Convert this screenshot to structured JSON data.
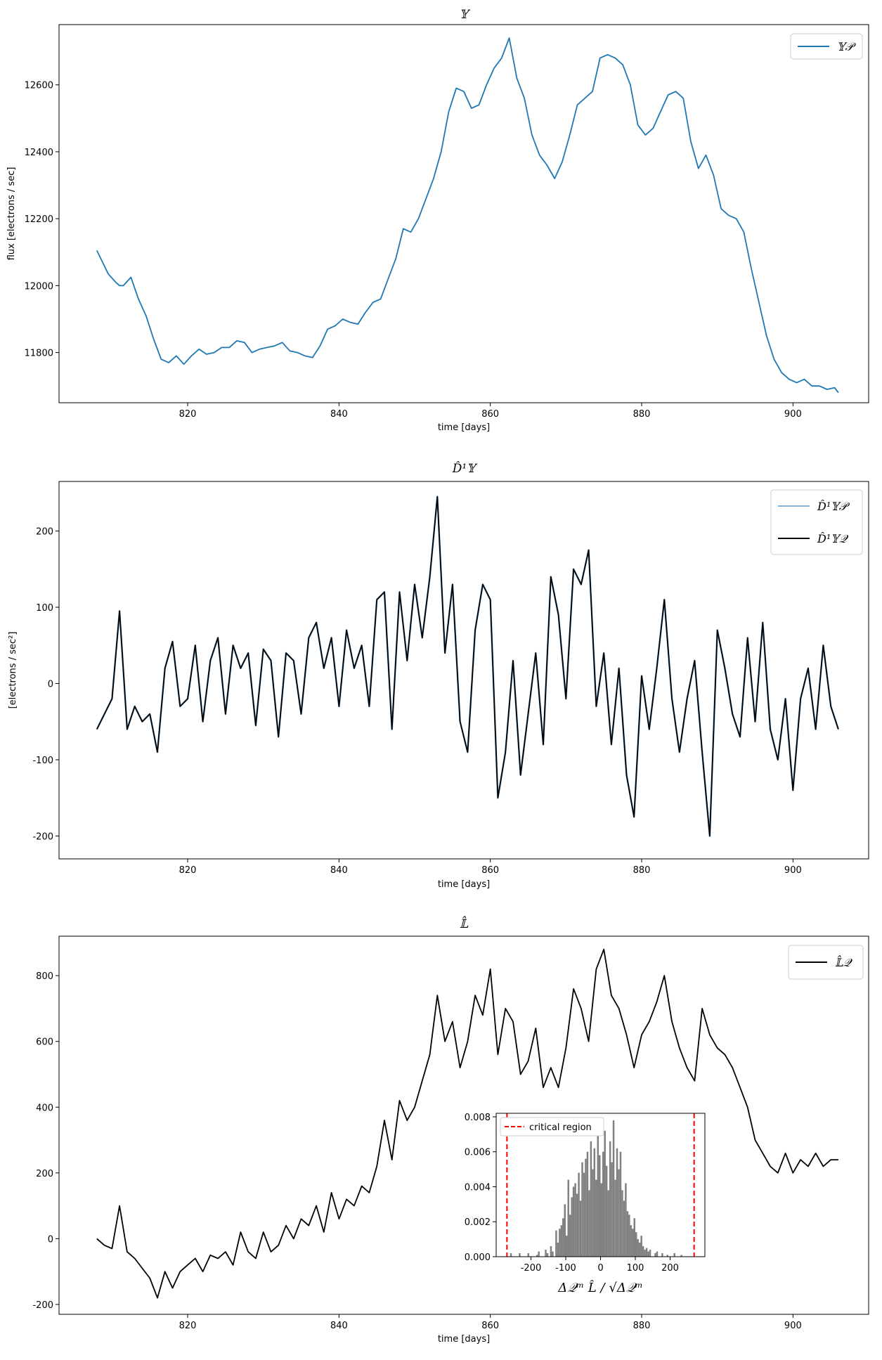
{
  "chart_data": [
    {
      "type": "line",
      "title": "𝕐",
      "xlabel": "time [days]",
      "ylabel": "flux [electrons / sec]",
      "xlim": [
        803,
        910
      ],
      "ylim": [
        11650,
        12780
      ],
      "xticks": [
        820,
        840,
        860,
        880,
        900
      ],
      "yticks": [
        11800,
        12000,
        12200,
        12400,
        12600
      ],
      "legend_position": "top-right",
      "grid": false,
      "series": [
        {
          "name": "𝕐𝒫",
          "color": "#1f77b4",
          "x": [
            808,
            809.5,
            810.5,
            811,
            811.5,
            812.5,
            813.5,
            814.5,
            815.5,
            816.5,
            817.5,
            818.5,
            819.5,
            820.5,
            821.5,
            822.5,
            823.5,
            824.5,
            825.5,
            826.5,
            827.5,
            828.5,
            829.5,
            830.5,
            831.5,
            832.5,
            833.5,
            834.5,
            835.5,
            836.5,
            837.5,
            838.5,
            839.5,
            840.5,
            841.5,
            842.5,
            843.5,
            844.5,
            845.5,
            846.5,
            847.5,
            848.5,
            849.5,
            850.5,
            851.5,
            852.5,
            853.5,
            854.5,
            855.5,
            856.5,
            857.5,
            858.5,
            859.5,
            860.5,
            861.5,
            862.5,
            863.5,
            864.5,
            865.5,
            866.5,
            867.5,
            868.5,
            869.5,
            870.5,
            871.5,
            872.5,
            873.5,
            874.5,
            875.5,
            876.5,
            877.5,
            878.5,
            879.5,
            880.5,
            881.5,
            882.5,
            883.5,
            884.5,
            885.5,
            886.5,
            887.5,
            888.5,
            889.5,
            890.5,
            891.5,
            892.5,
            893.5,
            894.5,
            895.5,
            896.5,
            897.5,
            898.5,
            899.5,
            900.5,
            901.5,
            902.5,
            903.5,
            904.5,
            905.5,
            906
          ],
          "y": [
            12105,
            12035,
            12010,
            12000,
            12000,
            12025,
            11960,
            11910,
            11840,
            11780,
            11770,
            11790,
            11765,
            11790,
            11810,
            11795,
            11800,
            11815,
            11815,
            11835,
            11830,
            11800,
            11810,
            11815,
            11820,
            11830,
            11805,
            11800,
            11790,
            11785,
            11820,
            11870,
            11880,
            11900,
            11890,
            11885,
            11920,
            11950,
            11960,
            12020,
            12080,
            12170,
            12160,
            12200,
            12260,
            12320,
            12400,
            12520,
            12590,
            12580,
            12530,
            12540,
            12600,
            12650,
            12680,
            12740,
            12620,
            12560,
            12450,
            12390,
            12360,
            12320,
            12370,
            12450,
            12540,
            12560,
            12580,
            12680,
            12690,
            12680,
            12660,
            12600,
            12480,
            12450,
            12470,
            12520,
            12570,
            12580,
            12560,
            12430,
            12350,
            12390,
            12330,
            12230,
            12210,
            12200,
            12160,
            12050,
            11950,
            11850,
            11780,
            11740,
            11720,
            11710,
            11720,
            11700,
            11700,
            11690,
            11695,
            11680
          ]
        }
      ]
    },
    {
      "type": "line",
      "title": "D̂¹𝕐",
      "xlabel": "time [days]",
      "ylabel": "[electrons / sec²]",
      "xlim": [
        803,
        910
      ],
      "ylim": [
        -230,
        265
      ],
      "xticks": [
        820,
        840,
        860,
        880,
        900
      ],
      "yticks": [
        -200,
        -100,
        0,
        100,
        200
      ],
      "legend_position": "top-right",
      "grid": false,
      "series": [
        {
          "name": "D̂¹𝕐𝒫",
          "color": "#7fb1d9",
          "x": [
            808,
            809,
            810,
            811,
            812,
            813,
            814,
            815,
            816,
            817,
            818,
            819,
            820,
            821,
            822,
            823,
            824,
            825,
            826,
            827,
            828,
            829,
            830,
            831,
            832,
            833,
            834,
            835,
            836,
            837,
            838,
            839,
            840,
            841,
            842,
            843,
            844,
            845,
            846,
            847,
            848,
            849,
            850,
            851,
            852,
            853,
            854,
            855,
            856,
            857,
            858,
            859,
            860,
            861,
            862,
            863,
            864,
            865,
            866,
            867,
            868,
            869,
            870,
            871,
            872,
            873,
            874,
            875,
            876,
            877,
            878,
            879,
            880,
            881,
            882,
            883,
            884,
            885,
            886,
            887,
            888,
            889,
            890,
            891,
            892,
            893,
            894,
            895,
            896,
            897,
            898,
            899,
            900,
            901,
            902,
            903,
            904,
            905,
            906
          ],
          "y": [
            -60,
            -40,
            -20,
            95,
            -60,
            -30,
            -50,
            -40,
            -90,
            20,
            55,
            -30,
            -20,
            50,
            -50,
            30,
            60,
            -40,
            50,
            20,
            40,
            -55,
            45,
            30,
            -70,
            40,
            30,
            -40,
            60,
            80,
            20,
            60,
            -30,
            70,
            20,
            50,
            -30,
            110,
            120,
            -60,
            120,
            30,
            130,
            60,
            140,
            245,
            40,
            130,
            -50,
            -90,
            70,
            130,
            110,
            -150,
            -90,
            30,
            -120,
            -40,
            40,
            -80,
            140,
            90,
            -20,
            150,
            130,
            175,
            -30,
            40,
            -80,
            20,
            -120,
            -175,
            10,
            -60,
            20,
            110,
            -20,
            -90,
            -20,
            30,
            -90,
            -200,
            70,
            20,
            -40,
            -70,
            60,
            -50,
            80,
            -60,
            -100,
            -20,
            -140,
            -20,
            20,
            -60,
            50,
            -30,
            -60
          ]
        },
        {
          "name": "D̂¹𝕐𝒬",
          "color": "#000000",
          "x": [
            808,
            809,
            810,
            811,
            812,
            813,
            814,
            815,
            816,
            817,
            818,
            819,
            820,
            821,
            822,
            823,
            824,
            825,
            826,
            827,
            828,
            829,
            830,
            831,
            832,
            833,
            834,
            835,
            836,
            837,
            838,
            839,
            840,
            841,
            842,
            843,
            844,
            845,
            846,
            847,
            848,
            849,
            850,
            851,
            852,
            853,
            854,
            855,
            856,
            857,
            858,
            859,
            860,
            861,
            862,
            863,
            864,
            865,
            866,
            867,
            868,
            869,
            870,
            871,
            872,
            873,
            874,
            875,
            876,
            877,
            878,
            879,
            880,
            881,
            882,
            883,
            884,
            885,
            886,
            887,
            888,
            889,
            890,
            891,
            892,
            893,
            894,
            895,
            896,
            897,
            898,
            899,
            900,
            901,
            902,
            903,
            904,
            905,
            906
          ],
          "y": [
            -60,
            -40,
            -20,
            95,
            -60,
            -30,
            -50,
            -40,
            -90,
            20,
            55,
            -30,
            -20,
            50,
            -50,
            30,
            60,
            -40,
            50,
            20,
            40,
            -55,
            45,
            30,
            -70,
            40,
            30,
            -40,
            60,
            80,
            20,
            60,
            -30,
            70,
            20,
            50,
            -30,
            110,
            120,
            -60,
            120,
            30,
            130,
            60,
            140,
            245,
            40,
            130,
            -50,
            -90,
            70,
            130,
            110,
            -150,
            -90,
            30,
            -120,
            -40,
            40,
            -80,
            140,
            90,
            -20,
            150,
            130,
            175,
            -30,
            40,
            -80,
            20,
            -120,
            -175,
            10,
            -60,
            20,
            110,
            -20,
            -90,
            -20,
            30,
            -90,
            -200,
            70,
            20,
            -40,
            -70,
            60,
            -50,
            80,
            -60,
            -100,
            -20,
            -140,
            -20,
            20,
            -60,
            50,
            -30,
            -60
          ]
        }
      ]
    },
    {
      "type": "line",
      "title": "𝕃̂",
      "xlabel": "time [days]",
      "ylabel": "",
      "xlim": [
        803,
        910
      ],
      "ylim": [
        -230,
        920
      ],
      "xticks": [
        820,
        840,
        860,
        880,
        900
      ],
      "yticks": [
        -200,
        0,
        200,
        400,
        600,
        800
      ],
      "legend_position": "top-right",
      "grid": false,
      "series": [
        {
          "name": "𝕃̂𝒬",
          "color": "#000000",
          "x": [
            808,
            809,
            810,
            811,
            812,
            813,
            814,
            815,
            816,
            817,
            818,
            819,
            820,
            821,
            822,
            823,
            824,
            825,
            826,
            827,
            828,
            829,
            830,
            831,
            832,
            833,
            834,
            835,
            836,
            837,
            838,
            839,
            840,
            841,
            842,
            843,
            844,
            845,
            846,
            847,
            848,
            849,
            850,
            851,
            852,
            853,
            854,
            855,
            856,
            857,
            858,
            859,
            860,
            861,
            862,
            863,
            864,
            865,
            866,
            867,
            868,
            869,
            870,
            871,
            872,
            873,
            874,
            875,
            876,
            877,
            878,
            879,
            880,
            881,
            882,
            883,
            884,
            885,
            886,
            887,
            888,
            889,
            890,
            891,
            892,
            893,
            894,
            895,
            896,
            897,
            898,
            899,
            900,
            901,
            902,
            903,
            904,
            905,
            906
          ],
          "y": [
            0,
            -20,
            -30,
            100,
            -40,
            -60,
            -90,
            -120,
            -180,
            -100,
            -150,
            -100,
            -80,
            -60,
            -100,
            -50,
            -60,
            -40,
            -80,
            20,
            -40,
            -60,
            20,
            -40,
            -20,
            40,
            0,
            60,
            40,
            100,
            20,
            140,
            60,
            120,
            100,
            160,
            140,
            220,
            360,
            240,
            420,
            360,
            400,
            480,
            560,
            740,
            600,
            660,
            520,
            600,
            740,
            680,
            820,
            560,
            700,
            660,
            500,
            540,
            640,
            460,
            520,
            460,
            580,
            760,
            700,
            600,
            820,
            880,
            740,
            700,
            620,
            520,
            620,
            660,
            720,
            800,
            660,
            580,
            520,
            480,
            700,
            620,
            580,
            560,
            520,
            460,
            400,
            300,
            260,
            220,
            200,
            260,
            200,
            240,
            220,
            260,
            220,
            240,
            240
          ]
        }
      ]
    },
    {
      "type": "bar",
      "title": "",
      "xlabel": "Δ𝒬ᵐ L̂ / √Δ𝒬ᵐ",
      "ylabel": "",
      "xlim": [
        -300,
        300
      ],
      "ylim": [
        0,
        0.0082
      ],
      "xticks": [
        -200,
        -100,
        0,
        100,
        200
      ],
      "yticks": [
        0.0,
        0.002,
        0.004,
        0.006,
        0.008
      ],
      "ytick_labels": [
        "0.000",
        "0.002",
        "0.004",
        "0.006",
        "0.008"
      ],
      "legend_position": "top-left",
      "legend_label": "critical region",
      "critical_lines": [
        -269,
        269
      ],
      "critical_color": "#ff0000",
      "bar_color": "#808080",
      "bin_width": 5,
      "bin_centers": [
        -257.5,
        -232.5,
        -207.5,
        -182.5,
        -177.5,
        -157.5,
        -152.5,
        -142.5,
        -137.5,
        -127.5,
        -122.5,
        -117.5,
        -112.5,
        -107.5,
        -102.5,
        -97.5,
        -92.5,
        -87.5,
        -82.5,
        -77.5,
        -72.5,
        -67.5,
        -62.5,
        -57.5,
        -52.5,
        -47.5,
        -42.5,
        -37.5,
        -32.5,
        -27.5,
        -22.5,
        -17.5,
        -12.5,
        -7.5,
        -2.5,
        2.5,
        7.5,
        12.5,
        17.5,
        22.5,
        27.5,
        32.5,
        37.5,
        42.5,
        47.5,
        52.5,
        57.5,
        62.5,
        67.5,
        72.5,
        77.5,
        82.5,
        87.5,
        92.5,
        97.5,
        102.5,
        107.5,
        112.5,
        117.5,
        122.5,
        127.5,
        132.5,
        137.5,
        142.5,
        157.5,
        162.5,
        177.5,
        192.5,
        212.5,
        232.5
      ],
      "densities": [
        0.0002,
        0.0002,
        0.0002,
        0.0001,
        0.0003,
        0.0004,
        0.0002,
        0.0006,
        0.0003,
        0.0015,
        0.0008,
        0.0016,
        0.0018,
        0.0022,
        0.003,
        0.0012,
        0.0044,
        0.0024,
        0.0034,
        0.004,
        0.0042,
        0.0036,
        0.0048,
        0.0032,
        0.0054,
        0.0048,
        0.0056,
        0.006,
        0.0038,
        0.0066,
        0.005,
        0.0062,
        0.0044,
        0.0076,
        0.0058,
        0.0042,
        0.006,
        0.0072,
        0.0052,
        0.0038,
        0.0066,
        0.0054,
        0.0078,
        0.0044,
        0.0062,
        0.005,
        0.006,
        0.0038,
        0.0032,
        0.0042,
        0.0026,
        0.0024,
        0.0018,
        0.0016,
        0.0022,
        0.0014,
        0.001,
        0.0008,
        0.0012,
        0.0006,
        0.0004,
        0.0005,
        0.0003,
        0.0004,
        0.0002,
        0.0003,
        0.0002,
        0.0001,
        0.0002,
        0.0001
      ]
    }
  ]
}
